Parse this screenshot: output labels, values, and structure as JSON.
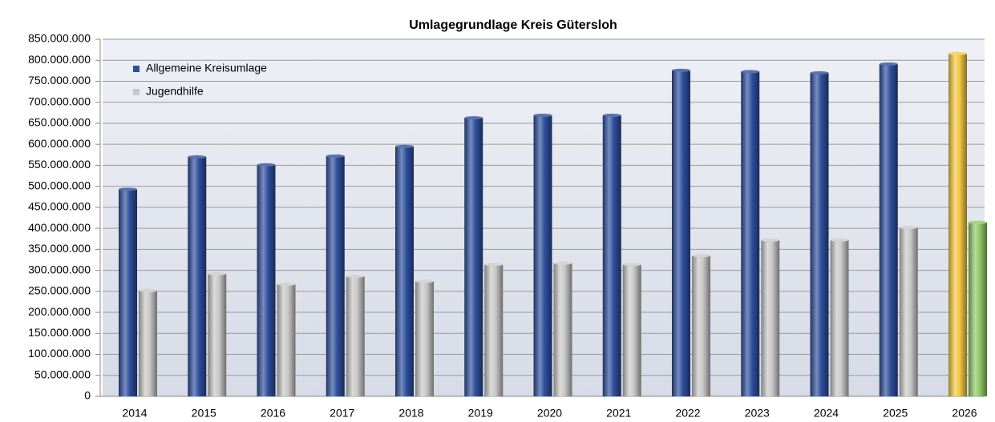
{
  "chart_data": {
    "type": "bar",
    "title": "Umlagegrundlage Kreis Gütersloh",
    "categories": [
      "2014",
      "2015",
      "2016",
      "2017",
      "2018",
      "2019",
      "2020",
      "2021",
      "2022",
      "2023",
      "2024",
      "2025",
      "2026"
    ],
    "series": [
      {
        "name": "Allgemeine Kreisumlage",
        "color": "#2e4f9c",
        "colors": [
          "#2e4f9c",
          "#2e4f9c",
          "#2e4f9c",
          "#2e4f9c",
          "#2e4f9c",
          "#2e4f9c",
          "#2e4f9c",
          "#2e4f9c",
          "#2e4f9c",
          "#2e4f9c",
          "#2e4f9c",
          "#2e4f9c",
          "#f2c842"
        ],
        "values": [
          493000000,
          570000000,
          551000000,
          572000000,
          595000000,
          663000000,
          669000000,
          669000000,
          776000000,
          773000000,
          770000000,
          791000000,
          816000000
        ]
      },
      {
        "name": "Jugendhilfe",
        "color": "#c8c8c8",
        "colors": [
          "#c8c8c8",
          "#c8c8c8",
          "#c8c8c8",
          "#c8c8c8",
          "#c8c8c8",
          "#c8c8c8",
          "#c8c8c8",
          "#c8c8c8",
          "#c8c8c8",
          "#c8c8c8",
          "#c8c8c8",
          "#c8c8c8",
          "#8fc965"
        ],
        "values": [
          252000000,
          292000000,
          267000000,
          286000000,
          274000000,
          314000000,
          317000000,
          314000000,
          335000000,
          372000000,
          372000000,
          402000000,
          414000000
        ]
      }
    ],
    "ylim": [
      0,
      850000000
    ],
    "yticks": [
      0,
      {
        "value": 50000000,
        "label": "50.000.000"
      },
      {
        "value": 100000000,
        "label": "100.000.000"
      },
      {
        "value": 150000000,
        "label": "150.000.000"
      },
      {
        "value": 200000000,
        "label": "200.000.000"
      },
      {
        "value": 250000000,
        "label": "250.000.000"
      },
      {
        "value": 300000000,
        "label": "300.000.000"
      },
      {
        "value": 350000000,
        "label": "350.000.000"
      },
      {
        "value": 400000000,
        "label": "400.000.000"
      },
      {
        "value": 450000000,
        "label": "450.000.000"
      },
      {
        "value": 500000000,
        "label": "500.000.000"
      },
      {
        "value": 550000000,
        "label": "550.000.000"
      },
      {
        "value": 600000000,
        "label": "600.000.000"
      },
      {
        "value": 650000000,
        "label": "650.000.000"
      },
      {
        "value": 700000000,
        "label": "700.000.000"
      },
      {
        "value": 750000000,
        "label": "750.000.000"
      },
      {
        "value": 800000000,
        "label": "800.000.000"
      },
      {
        "value": 850000000,
        "label": "850.000.000"
      }
    ],
    "grid": true,
    "legend": "top-left"
  }
}
